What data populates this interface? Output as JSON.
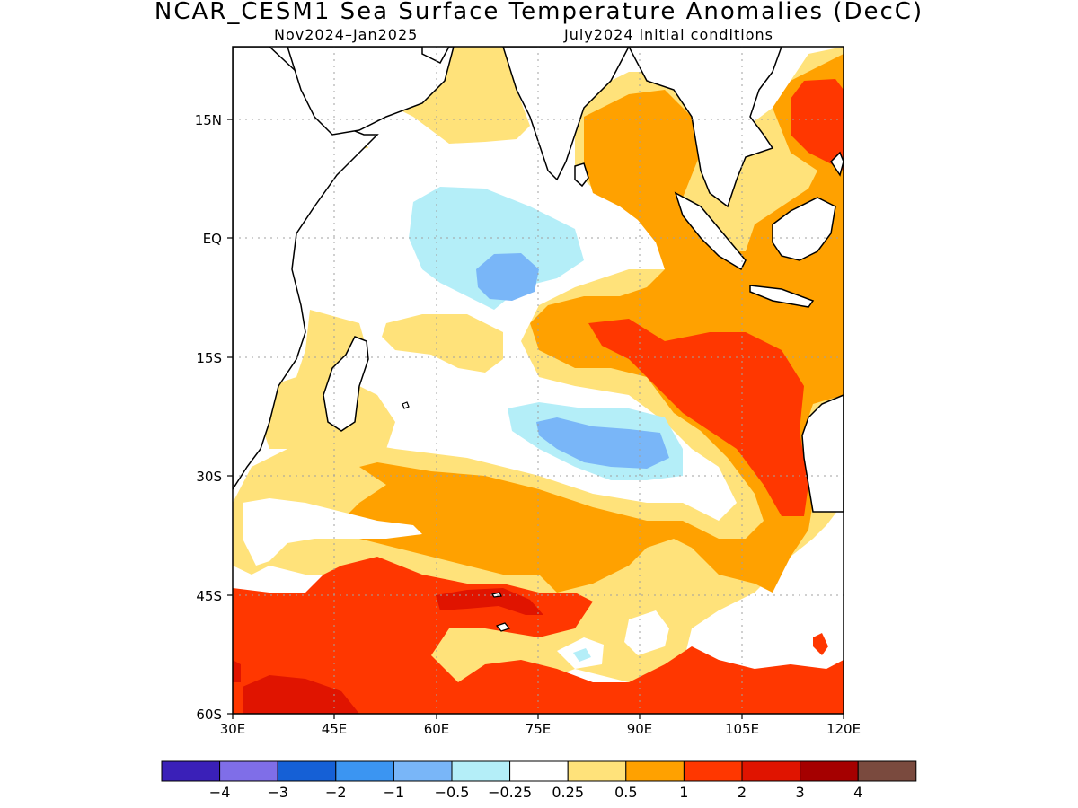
{
  "header": {
    "title": "NCAR_CESM1 Sea Surface Temperature Anomalies (DecC)",
    "period": "Nov2024–Jan2025",
    "init": "July2024 initial conditions"
  },
  "map": {
    "lon_range": [
      30,
      120
    ],
    "lat_range": [
      -60,
      24
    ],
    "lon_ticks": [
      "30E",
      "45E",
      "60E",
      "75E",
      "90E",
      "105E",
      "120E"
    ],
    "lat_ticks": [
      "15N",
      "EQ",
      "15S",
      "30S",
      "45S",
      "60S"
    ],
    "gridlines": true,
    "projection": "cylindrical"
  },
  "legend": {
    "labels": [
      "−4",
      "−3",
      "−2",
      "−1",
      "−0.5",
      "−0.25",
      "0.25",
      "0.5",
      "1",
      "2",
      "3",
      "4"
    ],
    "colors": [
      "#3a20b8",
      "#7f6ee8",
      "#1560d6",
      "#3b95f2",
      "#79b6f8",
      "#b4eef8",
      "#ffffff",
      "#ffe27a",
      "#ffa100",
      "#ff3700",
      "#e01400",
      "#a50000",
      "#7a4a3e"
    ]
  },
  "colors": {
    "land": "#ffffff",
    "coast": "#000000",
    "grid": "#a0a0a0"
  }
}
